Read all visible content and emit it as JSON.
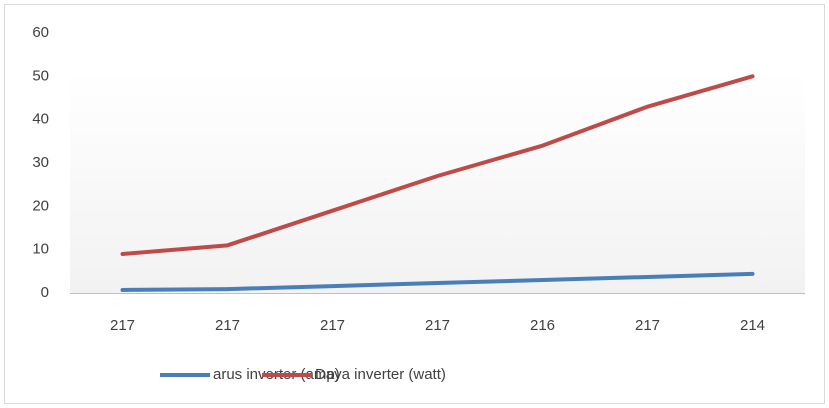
{
  "chart_data": {
    "type": "line",
    "categories": [
      "217",
      "217",
      "217",
      "217",
      "216",
      "217",
      "214"
    ],
    "series": [
      {
        "name": "arus inverter (amp)",
        "color": "#4a7ebb",
        "values": [
          0.7,
          0.9,
          1.6,
          2.3,
          3.0,
          3.7,
          4.4
        ]
      },
      {
        "name": "Daya inverter (watt)",
        "color": "#be4b48",
        "values": [
          9,
          11,
          19,
          27,
          34,
          43,
          50
        ]
      }
    ],
    "ylim": [
      0,
      60
    ],
    "yticks": [
      0,
      10,
      20,
      30,
      40,
      50,
      60
    ],
    "grid": false,
    "legend": "bottom"
  }
}
